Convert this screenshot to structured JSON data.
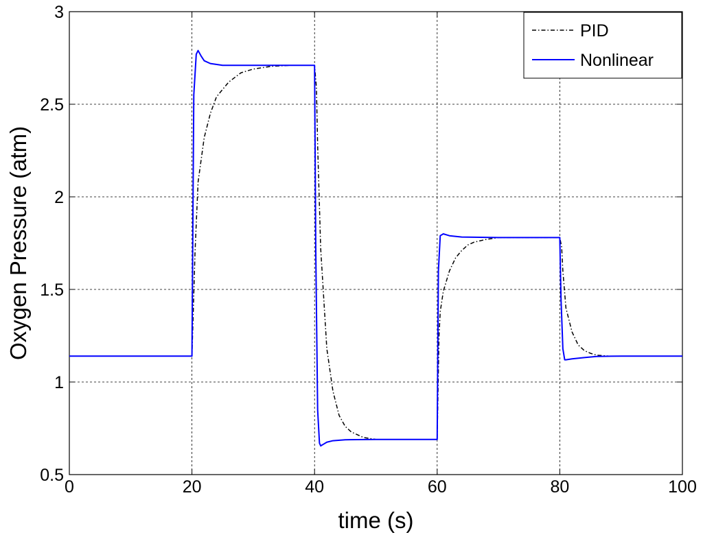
{
  "chart_data": {
    "type": "line",
    "xlabel": "time (s)",
    "ylabel": "Oxygen Pressure (atm)",
    "xlim": [
      0,
      100
    ],
    "ylim": [
      0.5,
      3
    ],
    "xticks": [
      0,
      20,
      40,
      60,
      80,
      100
    ],
    "yticks": [
      0.5,
      1,
      1.5,
      2,
      2.5,
      3
    ],
    "xtick_labels": [
      "0",
      "20",
      "40",
      "60",
      "80",
      "100"
    ],
    "ytick_labels": [
      "0.5",
      "1",
      "1.5",
      "2",
      "2.5",
      "3"
    ],
    "grid": true,
    "legend_position": "top-right",
    "series": [
      {
        "name": "PID",
        "color": "#000000",
        "style": "dash-dot",
        "x": [
          0,
          20,
          20.5,
          21,
          22,
          23,
          24,
          26,
          28,
          30,
          33,
          36,
          40,
          40.3,
          40.5,
          41,
          42,
          43,
          44,
          45,
          46,
          48,
          50,
          55,
          60,
          60.3,
          60.5,
          61,
          62,
          63,
          64,
          65,
          66,
          68,
          70,
          75,
          80,
          80.3,
          80.5,
          81,
          82,
          83,
          84,
          85,
          86,
          88,
          90,
          100
        ],
        "y": [
          1.14,
          1.14,
          1.7,
          2.08,
          2.32,
          2.45,
          2.54,
          2.62,
          2.67,
          2.69,
          2.705,
          2.71,
          2.71,
          2.59,
          2.28,
          1.72,
          1.18,
          0.95,
          0.82,
          0.76,
          0.73,
          0.7,
          0.69,
          0.69,
          0.69,
          1.25,
          1.38,
          1.49,
          1.6,
          1.67,
          1.71,
          1.74,
          1.755,
          1.77,
          1.78,
          1.78,
          1.78,
          1.73,
          1.6,
          1.4,
          1.27,
          1.2,
          1.17,
          1.155,
          1.145,
          1.14,
          1.14,
          1.14
        ]
      },
      {
        "name": "Nonlinear",
        "color": "#0000ff",
        "style": "solid",
        "x": [
          0,
          20,
          20.3,
          20.7,
          21,
          21.5,
          22,
          23,
          25,
          30,
          40,
          40.2,
          40.5,
          40.8,
          41,
          41.5,
          42,
          43,
          45,
          50,
          60,
          60.2,
          60.5,
          61,
          62,
          64,
          70,
          80,
          80.2,
          80.5,
          80.8,
          81,
          82,
          84,
          86,
          90,
          100
        ],
        "y": [
          1.14,
          1.14,
          2.55,
          2.77,
          2.79,
          2.76,
          2.735,
          2.72,
          2.71,
          2.71,
          2.71,
          1.7,
          0.85,
          0.67,
          0.655,
          0.665,
          0.675,
          0.683,
          0.688,
          0.69,
          0.69,
          1.6,
          1.79,
          1.8,
          1.79,
          1.783,
          1.78,
          1.78,
          1.45,
          1.18,
          1.12,
          1.12,
          1.125,
          1.132,
          1.138,
          1.14,
          1.14
        ]
      }
    ]
  }
}
